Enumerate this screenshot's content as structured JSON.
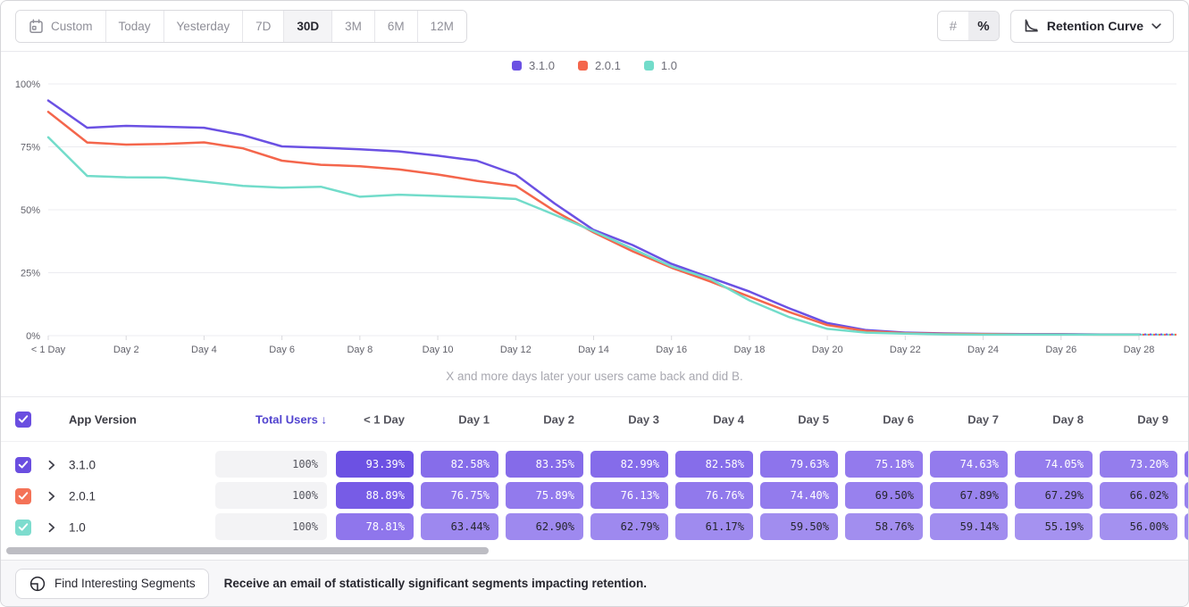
{
  "toolbar": {
    "date_ranges": [
      {
        "label": "Custom",
        "icon": "calendar-icon",
        "selected": false
      },
      {
        "label": "Today",
        "selected": false
      },
      {
        "label": "Yesterday",
        "selected": false
      },
      {
        "label": "7D",
        "selected": false
      },
      {
        "label": "30D",
        "selected": true
      },
      {
        "label": "3M",
        "selected": false
      },
      {
        "label": "6M",
        "selected": false
      },
      {
        "label": "12M",
        "selected": false
      }
    ],
    "value_mode": [
      {
        "label": "#",
        "selected": false
      },
      {
        "label": "%",
        "selected": true
      }
    ],
    "chart_type": {
      "label": "Retention Curve"
    }
  },
  "legend": [
    {
      "label": "3.1.0",
      "color": "#6B51E3"
    },
    {
      "label": "2.0.1",
      "color": "#F4664C"
    },
    {
      "label": "1.0",
      "color": "#72DCCA"
    }
  ],
  "chart_data": {
    "type": "line",
    "title": "",
    "xlabel": "X and more days later your users came back and did B.",
    "ylabel": "",
    "ylim": [
      0,
      100
    ],
    "grid": true,
    "legend_position": "top-center",
    "yticks": [
      {
        "value": 0,
        "label": "0%"
      },
      {
        "value": 25,
        "label": "25%"
      },
      {
        "value": 50,
        "label": "50%"
      },
      {
        "value": 75,
        "label": "75%"
      },
      {
        "value": 100,
        "label": "100%"
      }
    ],
    "x_tick_days": [
      0,
      2,
      4,
      6,
      8,
      10,
      12,
      14,
      16,
      18,
      20,
      22,
      24,
      26,
      28
    ],
    "x_tick_labels": [
      "< 1 Day",
      "Day 2",
      "Day 4",
      "Day 6",
      "Day 8",
      "Day 10",
      "Day 12",
      "Day 14",
      "Day 16",
      "Day 18",
      "Day 20",
      "Day 22",
      "Day 24",
      "Day 26",
      "Day 28"
    ],
    "dashed_projection_after_day": 28,
    "series": [
      {
        "name": "3.1.0",
        "color": "#6B51E3",
        "values": [
          93.39,
          82.58,
          83.35,
          82.99,
          82.58,
          79.63,
          75.18,
          74.63,
          74.05,
          73.2,
          71.5,
          69.5,
          64.0,
          52.5,
          42.0,
          36.0,
          28.5,
          23.0,
          17.5,
          11.0,
          5.0,
          2.2,
          1.2,
          0.9,
          0.7,
          0.6,
          0.6,
          0.5,
          0.5
        ]
      },
      {
        "name": "2.0.1",
        "color": "#F4664C",
        "values": [
          88.89,
          76.75,
          75.89,
          76.13,
          76.76,
          74.4,
          69.5,
          67.89,
          67.29,
          66.02,
          64.0,
          61.5,
          59.5,
          49.5,
          41.0,
          33.5,
          27.0,
          21.5,
          15.5,
          9.5,
          4.2,
          1.8,
          1.0,
          0.7,
          0.6,
          0.5,
          0.5,
          0.4,
          0.4
        ]
      },
      {
        "name": "1.0",
        "color": "#72DCCA",
        "values": [
          78.81,
          63.44,
          62.9,
          62.79,
          61.17,
          59.5,
          58.76,
          59.14,
          55.19,
          56.0,
          55.5,
          55.0,
          54.3,
          48.0,
          41.5,
          34.5,
          27.5,
          22.5,
          14.0,
          7.5,
          2.7,
          1.2,
          0.8,
          0.5,
          0.4,
          0.4,
          0.4,
          0.4,
          0.4
        ]
      }
    ]
  },
  "table": {
    "select_all_checked": true,
    "version_column": "App Version",
    "total_users_column": "Total Users",
    "sort_indicator": "↓",
    "day_columns": [
      "< 1 Day",
      "Day 1",
      "Day 2",
      "Day 3",
      "Day 4",
      "Day 5",
      "Day 6",
      "Day 7",
      "Day 8",
      "Day 9"
    ],
    "rows": [
      {
        "version": "3.1.0",
        "checked": true,
        "checkbox_color": "#6A4EE0",
        "total_users": "100%",
        "values": [
          93.39,
          82.58,
          83.35,
          82.99,
          82.58,
          79.63,
          75.18,
          74.63,
          74.05,
          73.2
        ],
        "overflow_cell_color": "#8C72EB"
      },
      {
        "version": "2.0.1",
        "checked": true,
        "checkbox_color": "#F47257",
        "total_users": "100%",
        "values": [
          88.89,
          76.75,
          75.89,
          76.13,
          76.76,
          74.4,
          69.5,
          67.89,
          67.29,
          66.02
        ],
        "overflow_cell_color": "#9781EE"
      },
      {
        "version": "1.0",
        "checked": true,
        "checkbox_color": "#7DDCCE",
        "total_users": "100%",
        "values": [
          78.81,
          63.44,
          62.9,
          62.79,
          61.17,
          59.5,
          58.76,
          59.14,
          55.19,
          56.0
        ],
        "overflow_cell_color": "#9D89EF"
      }
    ]
  },
  "footer": {
    "button_label": "Find Interesting Segments",
    "message": "Receive an email of statistically significant segments impacting retention."
  }
}
